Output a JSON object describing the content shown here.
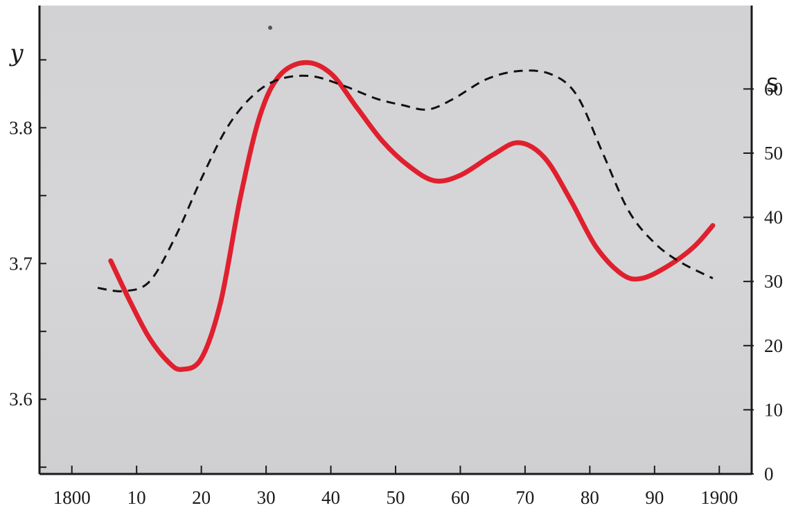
{
  "chart_data": {
    "type": "line",
    "x_ticks": [
      "1800",
      "10",
      "20",
      "30",
      "40",
      "50",
      "60",
      "70",
      "80",
      "90",
      "1900"
    ],
    "x_tick_values": [
      1800,
      1810,
      1820,
      1830,
      1840,
      1850,
      1860,
      1870,
      1880,
      1890,
      1900
    ],
    "xlim": [
      1795,
      1905
    ],
    "ylabel_left": "y",
    "ylim_left": [
      3.545,
      3.89
    ],
    "y_ticks_left": [
      "3.6",
      "3.7",
      "3.8"
    ],
    "y_tick_values_left": [
      3.6,
      3.7,
      3.8
    ],
    "ylabel_right": "S",
    "ylim_right": [
      0,
      73
    ],
    "y_ticks_right": [
      "0",
      "10",
      "20",
      "30",
      "40",
      "50",
      "60"
    ],
    "y_tick_values_right": [
      0,
      10,
      20,
      30,
      40,
      50,
      60
    ],
    "grid": false,
    "legend": null,
    "series": [
      {
        "axis": "left",
        "style": "solid",
        "color": "#e0202e",
        "points": [
          [
            1806,
            3.702
          ],
          [
            1809,
            3.672
          ],
          [
            1812,
            3.645
          ],
          [
            1815,
            3.627
          ],
          [
            1817,
            3.622
          ],
          [
            1820,
            3.63
          ],
          [
            1823,
            3.672
          ],
          [
            1826,
            3.748
          ],
          [
            1829,
            3.808
          ],
          [
            1832,
            3.838
          ],
          [
            1836,
            3.848
          ],
          [
            1840,
            3.84
          ],
          [
            1844,
            3.815
          ],
          [
            1848,
            3.79
          ],
          [
            1852,
            3.772
          ],
          [
            1856,
            3.761
          ],
          [
            1860,
            3.765
          ],
          [
            1865,
            3.78
          ],
          [
            1869,
            3.789
          ],
          [
            1873,
            3.778
          ],
          [
            1877,
            3.747
          ],
          [
            1881,
            3.712
          ],
          [
            1885,
            3.692
          ],
          [
            1888,
            3.689
          ],
          [
            1892,
            3.698
          ],
          [
            1896,
            3.712
          ],
          [
            1899,
            3.728
          ]
        ]
      },
      {
        "axis": "right",
        "style": "dashed",
        "color": "#111111",
        "points": [
          [
            1804,
            29
          ],
          [
            1808,
            28.5
          ],
          [
            1812,
            30
          ],
          [
            1816,
            37
          ],
          [
            1820,
            46
          ],
          [
            1824,
            54
          ],
          [
            1828,
            59
          ],
          [
            1832,
            61.5
          ],
          [
            1837,
            62
          ],
          [
            1842,
            60.5
          ],
          [
            1847,
            58.5
          ],
          [
            1851,
            57.5
          ],
          [
            1855,
            56.8
          ],
          [
            1859,
            58.5
          ],
          [
            1864,
            61.5
          ],
          [
            1869,
            62.8
          ],
          [
            1874,
            62.3
          ],
          [
            1878,
            59
          ],
          [
            1882,
            50
          ],
          [
            1886,
            41
          ],
          [
            1890,
            36
          ],
          [
            1894,
            33
          ],
          [
            1899,
            30.5
          ]
        ]
      }
    ]
  }
}
